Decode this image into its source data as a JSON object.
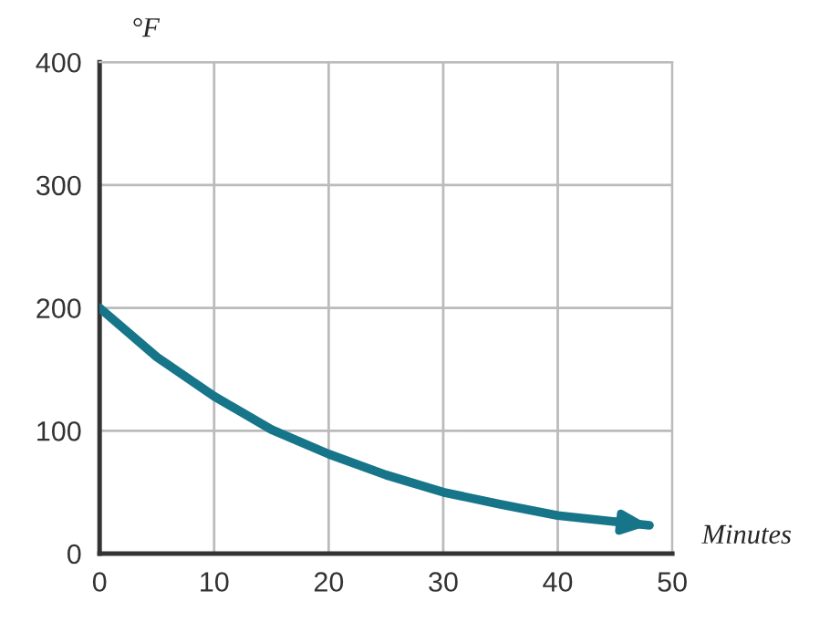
{
  "chart_data": {
    "type": "line",
    "xlabel": "Minutes",
    "ylabel": "°F",
    "x": [
      0,
      5,
      10,
      15,
      20,
      25,
      30,
      35,
      40,
      45,
      48
    ],
    "series": [
      {
        "color": "#17758a",
        "values": [
          200,
          160,
          128,
          101,
          81,
          64,
          50,
          40,
          31,
          26,
          23
        ]
      }
    ],
    "xlim": [
      0,
      50
    ],
    "ylim": [
      0,
      400
    ],
    "xticks": [
      0,
      10,
      20,
      30,
      40,
      50
    ],
    "yticks": [
      0,
      100,
      200,
      300,
      400
    ],
    "grid": true,
    "line_style": "solid",
    "marker": "none"
  }
}
